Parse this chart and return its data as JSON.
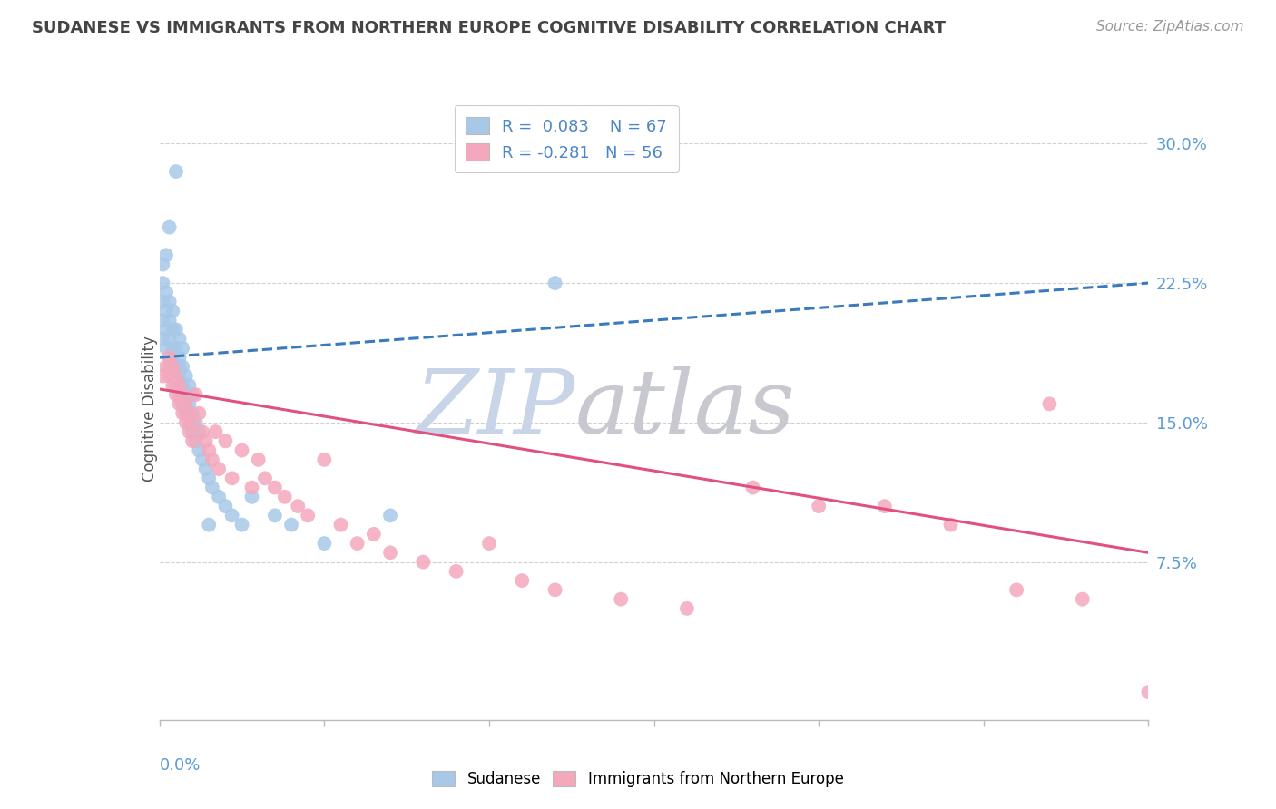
{
  "title": "SUDANESE VS IMMIGRANTS FROM NORTHERN EUROPE COGNITIVE DISABILITY CORRELATION CHART",
  "source": "Source: ZipAtlas.com",
  "ylabel": "Cognitive Disability",
  "y_ticks": [
    0.075,
    0.15,
    0.225,
    0.3
  ],
  "y_tick_labels": [
    "7.5%",
    "15.0%",
    "22.5%",
    "30.0%"
  ],
  "x_lim": [
    0.0,
    0.3
  ],
  "y_lim": [
    -0.01,
    0.325
  ],
  "color_blue": "#a8c8e8",
  "color_pink": "#f4a8bc",
  "color_blue_line": "#3a7abf",
  "color_pink_line": "#e05080",
  "color_title": "#444444",
  "color_source": "#999999",
  "color_axis_labels": "#5b9bd5",
  "watermark_zip_color": "#c8d4e8",
  "watermark_atlas_color": "#c8c8d0",
  "blue_trend_x0": 0.0,
  "blue_trend_y0": 0.185,
  "blue_trend_x1": 0.3,
  "blue_trend_y1": 0.225,
  "pink_trend_x0": 0.0,
  "pink_trend_y0": 0.168,
  "pink_trend_x1": 0.3,
  "pink_trend_y1": 0.08,
  "sudanese_x": [
    0.001,
    0.001,
    0.001,
    0.001,
    0.001,
    0.002,
    0.002,
    0.002,
    0.002,
    0.002,
    0.003,
    0.003,
    0.003,
    0.003,
    0.003,
    0.004,
    0.004,
    0.004,
    0.004,
    0.004,
    0.005,
    0.005,
    0.005,
    0.005,
    0.005,
    0.006,
    0.006,
    0.006,
    0.006,
    0.007,
    0.007,
    0.007,
    0.007,
    0.008,
    0.008,
    0.008,
    0.009,
    0.009,
    0.009,
    0.01,
    0.01,
    0.01,
    0.011,
    0.011,
    0.012,
    0.012,
    0.013,
    0.014,
    0.015,
    0.016,
    0.018,
    0.02,
    0.022,
    0.025,
    0.028,
    0.035,
    0.04,
    0.05,
    0.07,
    0.12,
    0.003,
    0.004,
    0.005,
    0.006,
    0.007,
    0.008,
    0.015
  ],
  "sudanese_y": [
    0.195,
    0.205,
    0.215,
    0.225,
    0.235,
    0.19,
    0.2,
    0.21,
    0.22,
    0.24,
    0.185,
    0.195,
    0.205,
    0.215,
    0.255,
    0.18,
    0.19,
    0.2,
    0.21,
    0.175,
    0.17,
    0.18,
    0.19,
    0.2,
    0.285,
    0.165,
    0.175,
    0.185,
    0.195,
    0.16,
    0.17,
    0.18,
    0.19,
    0.155,
    0.165,
    0.175,
    0.15,
    0.16,
    0.17,
    0.145,
    0.155,
    0.165,
    0.14,
    0.15,
    0.135,
    0.145,
    0.13,
    0.125,
    0.12,
    0.115,
    0.11,
    0.105,
    0.1,
    0.095,
    0.11,
    0.1,
    0.095,
    0.085,
    0.1,
    0.225,
    0.18,
    0.185,
    0.175,
    0.18,
    0.16,
    0.155,
    0.095
  ],
  "pink_x": [
    0.001,
    0.002,
    0.003,
    0.003,
    0.004,
    0.004,
    0.005,
    0.005,
    0.006,
    0.006,
    0.007,
    0.007,
    0.008,
    0.008,
    0.009,
    0.009,
    0.01,
    0.01,
    0.011,
    0.012,
    0.013,
    0.014,
    0.015,
    0.016,
    0.017,
    0.018,
    0.02,
    0.022,
    0.025,
    0.028,
    0.03,
    0.032,
    0.035,
    0.038,
    0.042,
    0.045,
    0.05,
    0.055,
    0.06,
    0.065,
    0.07,
    0.08,
    0.09,
    0.1,
    0.11,
    0.12,
    0.14,
    0.16,
    0.18,
    0.2,
    0.22,
    0.24,
    0.26,
    0.28,
    0.3,
    0.27
  ],
  "pink_y": [
    0.175,
    0.18,
    0.175,
    0.185,
    0.17,
    0.18,
    0.165,
    0.175,
    0.16,
    0.17,
    0.155,
    0.165,
    0.15,
    0.16,
    0.145,
    0.155,
    0.14,
    0.15,
    0.165,
    0.155,
    0.145,
    0.14,
    0.135,
    0.13,
    0.145,
    0.125,
    0.14,
    0.12,
    0.135,
    0.115,
    0.13,
    0.12,
    0.115,
    0.11,
    0.105,
    0.1,
    0.13,
    0.095,
    0.085,
    0.09,
    0.08,
    0.075,
    0.07,
    0.085,
    0.065,
    0.06,
    0.055,
    0.05,
    0.115,
    0.105,
    0.105,
    0.095,
    0.06,
    0.055,
    0.005,
    0.16
  ]
}
